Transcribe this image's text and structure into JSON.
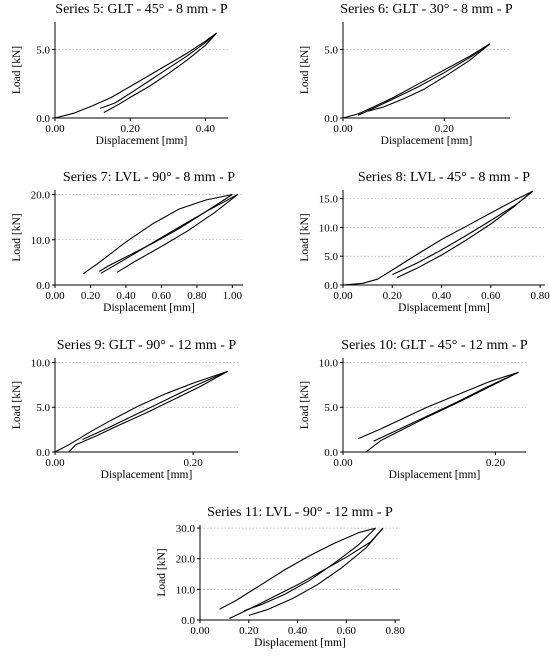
{
  "chart_data": [
    {
      "type": "line",
      "title": "Series 5: GLT  - 45° - 8 mm  - P",
      "xlabel": "Displacement [mm]",
      "ylabel": "Load [kN]",
      "xlim": [
        0,
        0.46
      ],
      "ylim": [
        0,
        7.0
      ],
      "xticks": [
        0.0,
        0.2,
        0.4
      ],
      "xtick_labels": [
        "0.00",
        "0.20",
        "0.40"
      ],
      "yticks": [
        0.0,
        5.0
      ],
      "ytick_labels": [
        "0.0",
        "5.0"
      ],
      "grid": "horizontal dotted",
      "series": [
        {
          "x": [
            0.0,
            0.05,
            0.1,
            0.15,
            0.2,
            0.25,
            0.3,
            0.35,
            0.4,
            0.43
          ],
          "y": [
            0.0,
            0.35,
            0.9,
            1.5,
            2.3,
            3.1,
            3.9,
            4.7,
            5.6,
            6.2
          ]
        },
        {
          "x": [
            0.43,
            0.4,
            0.35,
            0.3,
            0.25,
            0.2,
            0.17,
            0.15,
            0.13
          ],
          "y": [
            6.2,
            5.3,
            4.2,
            3.2,
            2.3,
            1.5,
            1.0,
            0.7,
            0.4
          ]
        },
        {
          "x": [
            0.12,
            0.16,
            0.2,
            0.25,
            0.3,
            0.35,
            0.4,
            0.43
          ],
          "y": [
            0.7,
            1.1,
            1.8,
            2.7,
            3.6,
            4.5,
            5.5,
            6.2
          ]
        }
      ]
    },
    {
      "type": "line",
      "title": "Series 6: GLT  - 30° - 8 mm  - P",
      "xlabel": "Displacement [mm]",
      "ylabel": "Load [kN]",
      "xlim": [
        0,
        0.33
      ],
      "ylim": [
        0,
        7.0
      ],
      "xticks": [
        0.0,
        0.2
      ],
      "xtick_labels": [
        "0.00",
        "0.20"
      ],
      "yticks": [
        0.0,
        5.0
      ],
      "ytick_labels": [
        "0.0",
        "5.0"
      ],
      "grid": "horizontal dotted",
      "series": [
        {
          "x": [
            0.0,
            0.03,
            0.06,
            0.1,
            0.15,
            0.2,
            0.25,
            0.29
          ],
          "y": [
            0.0,
            0.3,
            0.8,
            1.5,
            2.5,
            3.5,
            4.5,
            5.4
          ]
        },
        {
          "x": [
            0.29,
            0.25,
            0.2,
            0.15,
            0.1,
            0.06,
            0.03
          ],
          "y": [
            5.4,
            4.4,
            3.3,
            2.3,
            1.4,
            0.7,
            0.2
          ]
        },
        {
          "x": [
            0.05,
            0.08,
            0.12,
            0.16,
            0.2,
            0.25,
            0.29
          ],
          "y": [
            0.5,
            0.8,
            1.4,
            2.1,
            3.0,
            4.2,
            5.4
          ]
        }
      ]
    },
    {
      "type": "line",
      "title": "Series 7: LVL  - 90° - 8 mm  - P",
      "xlabel": "Displacement [mm]",
      "ylabel": "Load [kN]",
      "xlim": [
        0,
        1.06
      ],
      "ylim": [
        0,
        21.0
      ],
      "xticks": [
        0.0,
        0.2,
        0.4,
        0.6,
        0.8,
        1.0
      ],
      "xtick_labels": [
        "0.00",
        "0.20",
        "0.40",
        "0.60",
        "0.80",
        "1.00"
      ],
      "yticks": [
        0.0,
        10.0,
        20.0
      ],
      "ytick_labels": [
        "0.0",
        "10.0",
        "20.0"
      ],
      "grid": "horizontal dotted",
      "series": [
        {
          "x": [
            0.16,
            0.25,
            0.4,
            0.55,
            0.7,
            0.85,
            1.0
          ],
          "y": [
            2.5,
            5.0,
            9.5,
            13.5,
            16.8,
            18.8,
            20.0
          ]
        },
        {
          "x": [
            1.0,
            0.85,
            0.7,
            0.55,
            0.4,
            0.3,
            0.25
          ],
          "y": [
            20.0,
            16.2,
            12.5,
            9.2,
            6.2,
            4.2,
            3.0
          ]
        },
        {
          "x": [
            0.26,
            0.4,
            0.55,
            0.7,
            0.85,
            1.03
          ],
          "y": [
            2.6,
            5.8,
            9.3,
            12.8,
            16.2,
            20.0
          ]
        },
        {
          "x": [
            1.03,
            0.9,
            0.75,
            0.6,
            0.45,
            0.35
          ],
          "y": [
            20.0,
            16.0,
            12.0,
            8.5,
            5.2,
            2.8
          ]
        }
      ]
    },
    {
      "type": "line",
      "title": "Series 8: LVL  - 45° - 8 mm  - P",
      "xlabel": "Displacement [mm]",
      "ylabel": "Load [kN]",
      "xlim": [
        0,
        0.82
      ],
      "ylim": [
        0,
        16.5
      ],
      "xticks": [
        0.0,
        0.2,
        0.4,
        0.6,
        0.8
      ],
      "xtick_labels": [
        "0.00",
        "0.20",
        "0.40",
        "0.60",
        "0.80"
      ],
      "yticks": [
        0.0,
        5.0,
        10.0,
        15.0
      ],
      "ytick_labels": [
        "0.0",
        "5.0",
        "10.0",
        "15.0"
      ],
      "grid": "horizontal dotted",
      "series": [
        {
          "x": [
            0.0,
            0.08,
            0.14,
            0.2,
            0.3,
            0.4,
            0.5,
            0.6,
            0.7,
            0.77
          ],
          "y": [
            0.0,
            0.3,
            1.0,
            2.6,
            5.3,
            7.9,
            10.2,
            12.5,
            14.8,
            16.3
          ]
        },
        {
          "x": [
            0.77,
            0.7,
            0.6,
            0.5,
            0.4,
            0.3,
            0.22
          ],
          "y": [
            16.3,
            13.8,
            10.6,
            7.8,
            5.2,
            2.9,
            1.3
          ]
        },
        {
          "x": [
            0.2,
            0.3,
            0.4,
            0.5,
            0.6,
            0.7,
            0.77
          ],
          "y": [
            1.8,
            3.8,
            6.1,
            8.6,
            11.2,
            13.9,
            16.3
          ]
        }
      ]
    },
    {
      "type": "line",
      "title": "Series 9: GLT  - 90° - 12 mm  - P",
      "xlabel": "Displacement [mm]",
      "ylabel": "Load [kN]",
      "xlim": [
        0,
        0.265
      ],
      "ylim": [
        0,
        10.5
      ],
      "xticks": [
        0.0,
        0.2
      ],
      "xtick_labels": [
        "0.00",
        "0.20"
      ],
      "yticks": [
        0.0,
        5.0,
        10.0
      ],
      "ytick_labels": [
        "0.0",
        "5.0",
        "10.0"
      ],
      "grid": "horizontal dotted",
      "series": [
        {
          "x": [
            0.0,
            0.02,
            0.05,
            0.08,
            0.12,
            0.16,
            0.2,
            0.25
          ],
          "y": [
            0.0,
            0.8,
            2.2,
            3.5,
            5.1,
            6.5,
            7.7,
            9.0
          ]
        },
        {
          "x": [
            0.25,
            0.21,
            0.17,
            0.13,
            0.09,
            0.06,
            0.03,
            0.02
          ],
          "y": [
            9.0,
            7.3,
            5.8,
            4.3,
            2.9,
            1.8,
            0.8,
            0.0
          ]
        },
        {
          "x": [
            0.04,
            0.08,
            0.12,
            0.16,
            0.2,
            0.25
          ],
          "y": [
            1.4,
            2.8,
            4.3,
            5.8,
            7.3,
            9.0
          ]
        }
      ]
    },
    {
      "type": "line",
      "title": "Series 10: GLT  - 45° - 12 mm  - P",
      "xlabel": "Displacement [mm]",
      "ylabel": "Load [kN]",
      "xlim": [
        0,
        0.24
      ],
      "ylim": [
        0,
        10.5
      ],
      "xticks": [
        0.0,
        0.2
      ],
      "xtick_labels": [
        "0.00",
        "0.20"
      ],
      "yticks": [
        0.0,
        5.0,
        10.0
      ],
      "ytick_labels": [
        "0.0",
        "5.0",
        "10.0"
      ],
      "grid": "horizontal dotted",
      "series": [
        {
          "x": [
            0.02,
            0.05,
            0.08,
            0.11,
            0.15,
            0.19,
            0.23
          ],
          "y": [
            1.5,
            2.6,
            3.8,
            5.0,
            6.4,
            7.8,
            8.9
          ]
        },
        {
          "x": [
            0.23,
            0.19,
            0.15,
            0.11,
            0.08,
            0.05,
            0.03
          ],
          "y": [
            8.9,
            7.2,
            5.5,
            3.9,
            2.6,
            1.3,
            0.0
          ]
        },
        {
          "x": [
            0.04,
            0.07,
            0.11,
            0.15,
            0.19,
            0.23
          ],
          "y": [
            1.2,
            2.4,
            4.0,
            5.6,
            7.3,
            8.9
          ]
        }
      ]
    },
    {
      "type": "line",
      "title": "Series 11: LVL  - 90° - 12 mm  - P",
      "xlabel": "Displacement [mm]",
      "ylabel": "Load [kN]",
      "xlim": [
        0,
        0.82
      ],
      "ylim": [
        0,
        31.0
      ],
      "xticks": [
        0.0,
        0.2,
        0.4,
        0.6,
        0.8
      ],
      "xtick_labels": [
        "0.00",
        "0.20",
        "0.40",
        "0.60",
        "0.80"
      ],
      "yticks": [
        0.0,
        10.0,
        20.0,
        30.0
      ],
      "ytick_labels": [
        "0.0",
        "10.0",
        "20.0",
        "30.0"
      ],
      "grid": "horizontal dotted",
      "series": [
        {
          "x": [
            0.08,
            0.15,
            0.25,
            0.35,
            0.45,
            0.55,
            0.65,
            0.72
          ],
          "y": [
            3.5,
            6.5,
            11.5,
            16.5,
            21.0,
            25.0,
            28.5,
            30.0
          ]
        },
        {
          "x": [
            0.72,
            0.65,
            0.55,
            0.45,
            0.35,
            0.25,
            0.18
          ],
          "y": [
            30.0,
            24.5,
            18.5,
            13.0,
            8.5,
            5.0,
            3.0
          ]
        },
        {
          "x": [
            0.12,
            0.2,
            0.3,
            0.4,
            0.5,
            0.6,
            0.7,
            0.75
          ],
          "y": [
            0.5,
            3.5,
            7.5,
            11.5,
            16.0,
            20.5,
            25.5,
            30.0
          ]
        },
        {
          "x": [
            0.75,
            0.68,
            0.58,
            0.48,
            0.38,
            0.28,
            0.2
          ],
          "y": [
            30.0,
            23.5,
            17.0,
            11.5,
            7.0,
            3.5,
            1.5
          ]
        }
      ]
    }
  ]
}
